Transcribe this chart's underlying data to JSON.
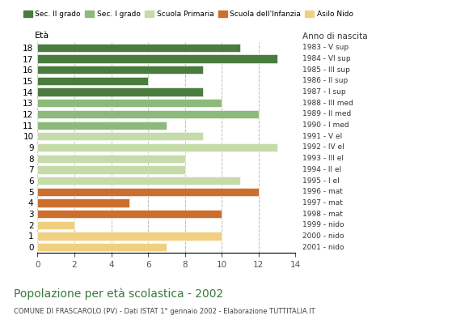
{
  "ages": [
    18,
    17,
    16,
    15,
    14,
    13,
    12,
    11,
    10,
    9,
    8,
    7,
    6,
    5,
    4,
    3,
    2,
    1,
    0
  ],
  "values": [
    11,
    13,
    9,
    6,
    9,
    10,
    12,
    7,
    9,
    13,
    8,
    8,
    11,
    12,
    5,
    10,
    2,
    10,
    7
  ],
  "right_labels": [
    "1983 - V sup",
    "1984 - VI sup",
    "1985 - III sup",
    "1986 - II sup",
    "1987 - I sup",
    "1988 - III med",
    "1989 - II med",
    "1990 - I med",
    "1991 - V el",
    "1992 - IV el",
    "1993 - III el",
    "1994 - II el",
    "1995 - I el",
    "1996 - mat",
    "1997 - mat",
    "1998 - mat",
    "1999 - nido",
    "2000 - nido",
    "2001 - nido"
  ],
  "colors_by_age": {
    "18": "#4a7c3f",
    "17": "#4a7c3f",
    "16": "#4a7c3f",
    "15": "#4a7c3f",
    "14": "#4a7c3f",
    "13": "#8db97a",
    "12": "#8db97a",
    "11": "#8db97a",
    "10": "#c5dba8",
    "9": "#c5dba8",
    "8": "#c5dba8",
    "7": "#c5dba8",
    "6": "#c5dba8",
    "5": "#cc6f2e",
    "4": "#cc6f2e",
    "3": "#cc6f2e",
    "2": "#f0d080",
    "1": "#f0d080",
    "0": "#f0d080"
  },
  "ylabel": "Età",
  "title": "Popolazione per età scolastica - 2002",
  "subtitle": "COMUNE DI FRASCAROLO (PV) - Dati ISTAT 1° gennaio 2002 - Elaborazione TUTTITALIA.IT",
  "anno_nascita_label": "Anno di nascita",
  "xlim": [
    0,
    14
  ],
  "xticks": [
    0,
    2,
    4,
    6,
    8,
    10,
    12,
    14
  ],
  "legend_labels": [
    "Sec. II grado",
    "Sec. I grado",
    "Scuola Primaria",
    "Scuola dell'Infanzia",
    "Asilo Nido"
  ],
  "legend_colors": [
    "#4a7c3f",
    "#8db97a",
    "#c5dba8",
    "#cc6f2e",
    "#f0d080"
  ],
  "bg_color": "#ffffff",
  "grid_color": "#bbbbbb",
  "title_color": "#3a7a3a",
  "subtitle_color": "#444444"
}
